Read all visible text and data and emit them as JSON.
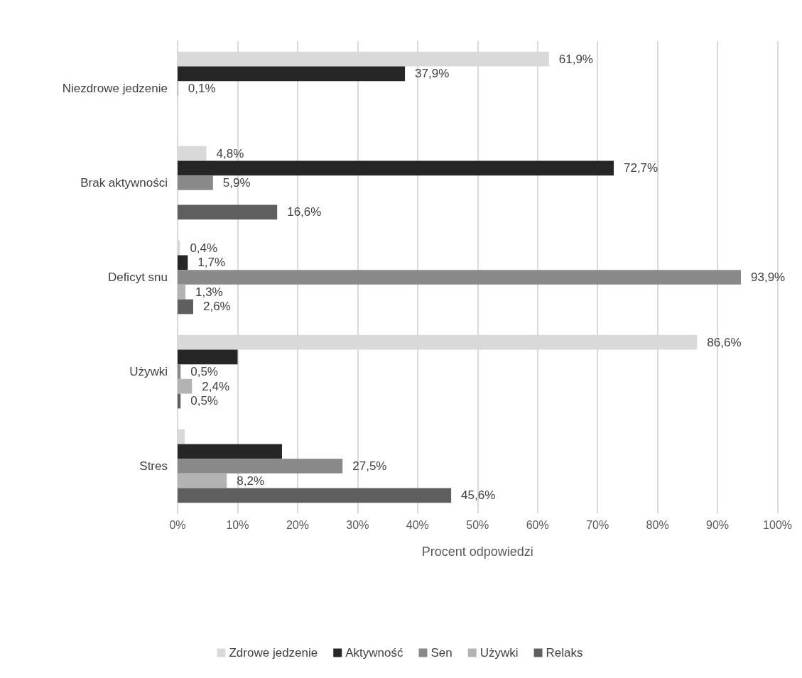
{
  "chart_data": {
    "type": "bar",
    "orientation": "horizontal",
    "xlabel": "Procent odpowiedzi",
    "categories": [
      "Niezdrowe jedzenie",
      "Brak aktywności",
      "Deficyt snu",
      "Używki",
      "Stres"
    ],
    "series": [
      {
        "name": "Zdrowe jedzenie",
        "color": "#d9d9d9",
        "values": [
          61.9,
          4.8,
          0.4,
          86.6,
          1.2
        ],
        "value_labels": [
          "61,9%",
          "4,8%",
          "0,4%",
          "86,6%",
          null
        ]
      },
      {
        "name": "Aktywność",
        "color": "#262626",
        "values": [
          37.9,
          72.7,
          1.7,
          10.0,
          17.4
        ],
        "value_labels": [
          "37,9%",
          "72,7%",
          "1,7%",
          null,
          null
        ]
      },
      {
        "name": "Sen",
        "color": "#898989",
        "values": [
          0.1,
          5.9,
          93.9,
          0.5,
          27.5
        ],
        "value_labels": [
          "0,1%",
          "5,9%",
          "93,9%",
          "0,5%",
          "27,5%"
        ]
      },
      {
        "name": "Używki",
        "color": "#b3b3b3",
        "values": [
          null,
          null,
          1.3,
          2.4,
          8.2
        ],
        "value_labels": [
          null,
          null,
          "1,3%",
          "2,4%",
          "8,2%"
        ]
      },
      {
        "name": "Relaks",
        "color": "#5f5f5f",
        "values": [
          null,
          16.6,
          2.6,
          0.5,
          45.6
        ],
        "value_labels": [
          null,
          "16,6%",
          "2,6%",
          "0,5%",
          "45,6%"
        ]
      }
    ],
    "xlim": [
      0,
      100
    ],
    "xticks": [
      {
        "value": 0,
        "label": "0%"
      },
      {
        "value": 10,
        "label": "10%"
      },
      {
        "value": 20,
        "label": "20%"
      },
      {
        "value": 30,
        "label": "30%"
      },
      {
        "value": 40,
        "label": "40%"
      },
      {
        "value": 50,
        "label": "50%"
      },
      {
        "value": 60,
        "label": "60%"
      },
      {
        "value": 70,
        "label": "70%"
      },
      {
        "value": 80,
        "label": "80%"
      },
      {
        "value": 90,
        "label": "90%"
      },
      {
        "value": 100,
        "label": "100%"
      }
    ],
    "grid": "x",
    "legend": "bottom"
  }
}
